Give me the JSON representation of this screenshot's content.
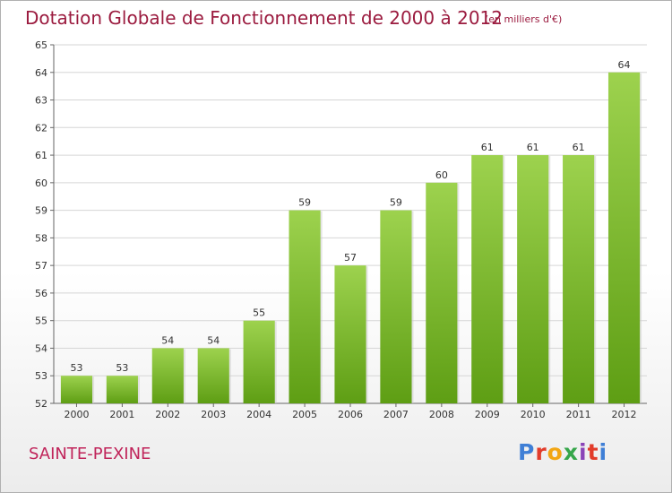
{
  "header": {
    "title": "Dotation Globale de Fonctionnement de 2000 à 2012",
    "subtitle": "(en milliers d'€)"
  },
  "footer": {
    "commune": "SAINTE-PEXINE",
    "logo_text": "Proxiti",
    "logo_colors": [
      "#3f7fd6",
      "#e23c2a",
      "#f2a614",
      "#36a64a",
      "#8a44b8",
      "#e23c2a",
      "#3f7fd6"
    ]
  },
  "colors": {
    "title": "#9b1b3f",
    "commune": "#c0245a",
    "bar_top": "#9dd24e",
    "bar_bottom": "#5e9e14",
    "grid": "#d6d6d6"
  },
  "chart_data": {
    "type": "bar",
    "categories": [
      "2000",
      "2001",
      "2002",
      "2003",
      "2004",
      "2005",
      "2006",
      "2007",
      "2008",
      "2009",
      "2010",
      "2011",
      "2012"
    ],
    "values": [
      53,
      53,
      54,
      54,
      55,
      59,
      57,
      59,
      60,
      61,
      61,
      61,
      64
    ],
    "title": "Dotation Globale de Fonctionnement de 2000 à 2012",
    "subtitle": "(en milliers d'€)",
    "ylim": [
      52,
      65
    ],
    "yticks": [
      52,
      53,
      54,
      55,
      56,
      57,
      58,
      59,
      60,
      61,
      62,
      63,
      64,
      65
    ],
    "grid": true,
    "data_labels": true
  }
}
